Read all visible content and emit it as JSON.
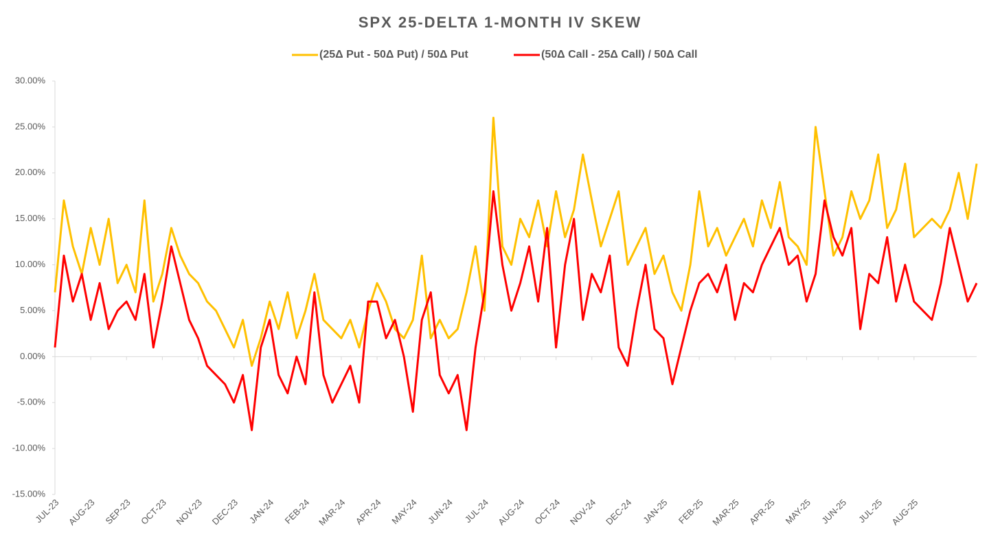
{
  "chart_data": {
    "type": "line",
    "title": "SPX 25-DELTA  1-MONTH  IV SKEW",
    "categories": [
      "JUL-23",
      null,
      null,
      null,
      "AUG-23",
      null,
      null,
      null,
      "SEP-23",
      null,
      null,
      null,
      "OCT-23",
      null,
      null,
      null,
      "NOV-23",
      null,
      null,
      null,
      "DEC-23",
      null,
      null,
      null,
      "JAN-24",
      null,
      null,
      null,
      "FEB-24",
      null,
      null,
      null,
      "MAR-24",
      null,
      null,
      null,
      "APR-24",
      null,
      null,
      null,
      "MAY-24",
      null,
      null,
      null,
      "JUN-24",
      null,
      null,
      null,
      "JUL-24",
      null,
      null,
      null,
      "AUG-24",
      null,
      null,
      null,
      "OCT-24",
      null,
      null,
      null,
      "NOV-24",
      null,
      null,
      null,
      "DEC-24",
      null,
      null,
      null,
      "JAN-25",
      null,
      null,
      null,
      "FEB-25",
      null,
      null,
      null,
      "MAR-25",
      null,
      null,
      null,
      "APR-25",
      null,
      null,
      null,
      "MAY-25",
      null,
      null,
      null,
      "JUN-25",
      null,
      null,
      null,
      "JUL-25",
      null,
      null,
      null,
      "AUG-25",
      null,
      null,
      null,
      null,
      null,
      null,
      null
    ],
    "series": [
      {
        "name": "(25Δ Put - 50Δ Put) / 50Δ Put",
        "color": "#ffc000",
        "values": [
          7,
          17,
          12,
          9,
          14,
          10,
          15,
          8,
          10,
          7,
          17,
          6,
          9,
          14,
          11,
          9,
          8,
          6,
          5,
          3,
          1,
          4,
          -1,
          2,
          6,
          3,
          7,
          2,
          5,
          9,
          4,
          3,
          2,
          4,
          1,
          5,
          8,
          6,
          3,
          2,
          4,
          11,
          2,
          4,
          2,
          3,
          7,
          12,
          5,
          26,
          12,
          10,
          15,
          13,
          17,
          12,
          18,
          13,
          16,
          22,
          17,
          12,
          15,
          18,
          10,
          12,
          14,
          9,
          11,
          7,
          5,
          10,
          18,
          12,
          14,
          11,
          13,
          15,
          12,
          17,
          14,
          19,
          13,
          12,
          10,
          25,
          18,
          11,
          13,
          18,
          15,
          17,
          22,
          14,
          16,
          21,
          13,
          14,
          15,
          14,
          16,
          20,
          15,
          21
        ]
      },
      {
        "name": "(50Δ Call - 25Δ Call) / 50Δ Call",
        "color": "#ff0000",
        "values": [
          1,
          11,
          6,
          9,
          4,
          8,
          3,
          5,
          6,
          4,
          9,
          1,
          6,
          12,
          8,
          4,
          2,
          -1,
          -2,
          -3,
          -5,
          -2,
          -8,
          1,
          4,
          -2,
          -4,
          0,
          -3,
          7,
          -2,
          -5,
          -3,
          -1,
          -5,
          6,
          6,
          2,
          4,
          0,
          -6,
          4,
          7,
          -2,
          -4,
          -2,
          -8,
          1,
          7,
          18,
          10,
          5,
          8,
          12,
          6,
          14,
          1,
          10,
          15,
          4,
          9,
          7,
          11,
          1,
          -1,
          5,
          10,
          3,
          2,
          -3,
          1,
          5,
          8,
          9,
          7,
          10,
          4,
          8,
          7,
          10,
          12,
          14,
          10,
          11,
          6,
          9,
          17,
          13,
          11,
          14,
          3,
          9,
          8,
          13,
          6,
          10,
          6,
          5,
          4,
          8,
          14,
          10,
          6,
          8
        ]
      }
    ],
    "ylim": [
      -15,
      30
    ],
    "yticks": [
      {
        "value": -15,
        "label": "-15.00%"
      },
      {
        "value": -10,
        "label": "-10.00%"
      },
      {
        "value": -5,
        "label": "-5.00%"
      },
      {
        "value": 0,
        "label": "0.00%"
      },
      {
        "value": 5,
        "label": "5.00%"
      },
      {
        "value": 10,
        "label": "10.00%"
      },
      {
        "value": 15,
        "label": "15.00%"
      },
      {
        "value": 20,
        "label": "20.00%"
      },
      {
        "value": 25,
        "label": "25.00%"
      },
      {
        "value": 30,
        "label": "30.00%"
      }
    ],
    "grid": false,
    "legend": "top"
  }
}
